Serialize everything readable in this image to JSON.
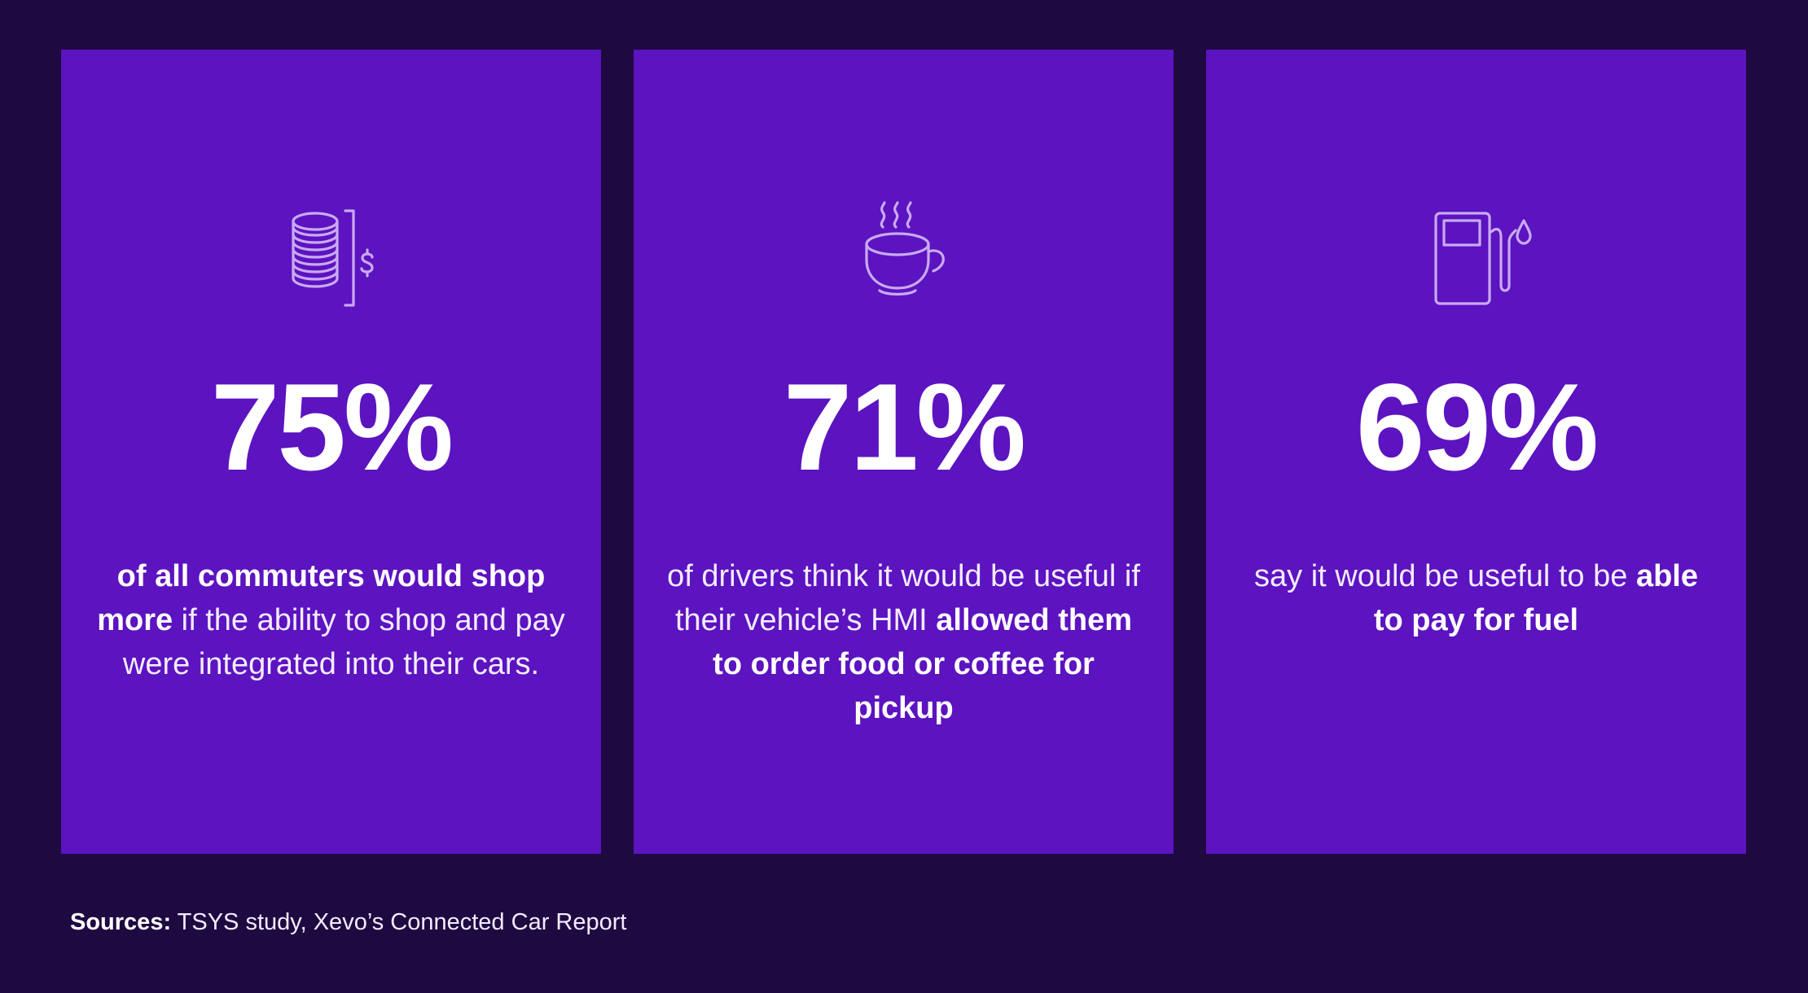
{
  "cards": [
    {
      "icon": "coins-stack-dollar-icon",
      "stat": "75%",
      "text_bold_1": "of all commuters would shop more",
      "text_normal_1": " if the ability to shop and pay were integrated into their cars.",
      "text_bold_2": "",
      "text_normal_2": ""
    },
    {
      "icon": "coffee-cup-icon",
      "stat": "71%",
      "text_bold_1": "",
      "text_normal_1": "of drivers think it would be useful if their vehicle’s HMI ",
      "text_bold_2": "allowed them to order food or coffee for pickup",
      "text_normal_2": ""
    },
    {
      "icon": "fuel-pump-icon",
      "stat": "69%",
      "text_bold_1": "",
      "text_normal_1": "say it would be useful to be ",
      "text_bold_2": "able to pay for fuel",
      "text_normal_2": ""
    }
  ],
  "sources": {
    "label": "Sources:",
    "text": " TSYS study, Xevo’s Connected Car Report"
  },
  "colors": {
    "background": "#1e0941",
    "card": "#5c13c0",
    "icon_stroke": "#c9aaf2",
    "text": "#ffffff"
  }
}
